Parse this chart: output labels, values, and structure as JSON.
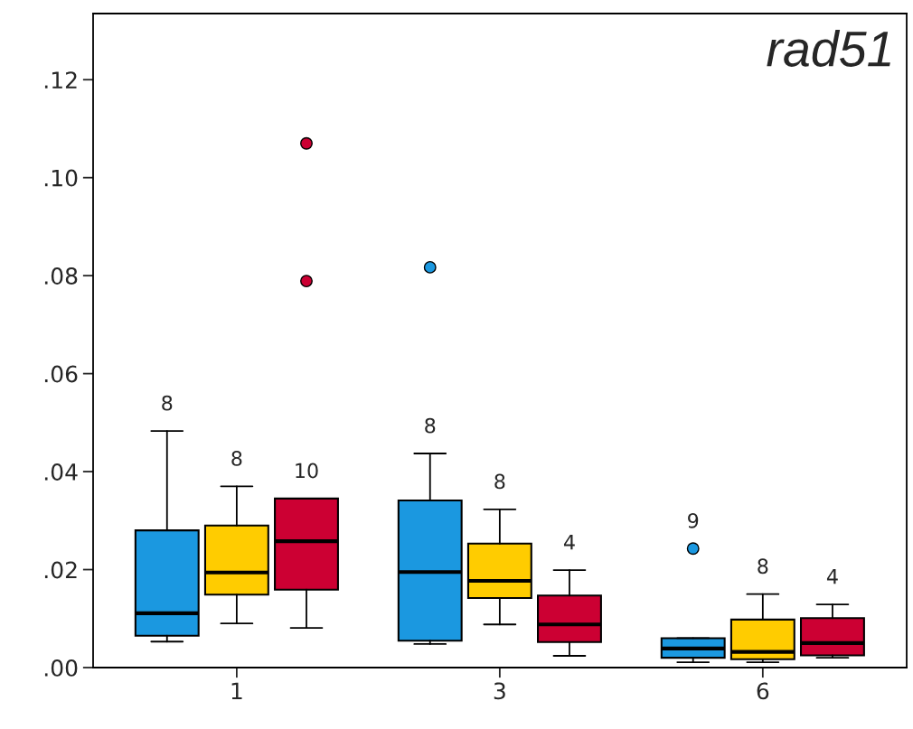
{
  "chart_data": {
    "type": "box",
    "title": "rad51",
    "categories": [
      "1",
      "3",
      "6"
    ],
    "series": [
      {
        "color": "#1b98e0",
        "boxes": [
          {
            "low": 0.0053,
            "q1": 0.0065,
            "median": 0.0111,
            "q3": 0.028,
            "high": 0.0483
          },
          {
            "low": 0.0048,
            "q1": 0.0055,
            "median": 0.0195,
            "q3": 0.0341,
            "high": 0.0437,
            "outliers": [
              0.0817
            ]
          },
          {
            "low": 0.0011,
            "q1": 0.002,
            "median": 0.0039,
            "q3": 0.006,
            "high": 0.006,
            "outliers": [
              0.0243
            ]
          }
        ]
      },
      {
        "color": "#ffcc00",
        "boxes": [
          {
            "low": 0.009,
            "q1": 0.0149,
            "median": 0.0194,
            "q3": 0.029,
            "high": 0.037
          },
          {
            "low": 0.0088,
            "q1": 0.0142,
            "median": 0.0177,
            "q3": 0.0253,
            "high": 0.0323
          },
          {
            "low": 0.0011,
            "q1": 0.0017,
            "median": 0.0032,
            "q3": 0.0098,
            "high": 0.015
          }
        ]
      },
      {
        "color": "#cc0033",
        "boxes": [
          {
            "low": 0.0081,
            "q1": 0.0159,
            "median": 0.0258,
            "q3": 0.0345,
            "high": 0.0345,
            "outliers": [
              0.0789,
              0.107
            ]
          },
          {
            "low": 0.0024,
            "q1": 0.0052,
            "median": 0.0088,
            "q3": 0.0147,
            "high": 0.0199
          },
          {
            "low": 0.002,
            "q1": 0.0025,
            "median": 0.005,
            "q3": 0.0101,
            "high": 0.0129
          }
        ]
      }
    ],
    "ylim": [
      0,
      0.1335
    ],
    "yticks": [
      {
        "value": 0,
        "label": ".00"
      },
      {
        "value": 0.02,
        "label": ".02"
      },
      {
        "value": 0.04,
        "label": ".04"
      },
      {
        "value": 0.06,
        "label": ".06"
      },
      {
        "value": 0.08,
        "label": ".08"
      },
      {
        "value": 0.1,
        "label": ".10"
      },
      {
        "value": 0.12,
        "label": ".12"
      }
    ],
    "grid": false,
    "legend": false,
    "annotations": [
      "8",
      "8",
      "10",
      "8",
      "8",
      "4",
      "9",
      "8",
      "4"
    ]
  }
}
